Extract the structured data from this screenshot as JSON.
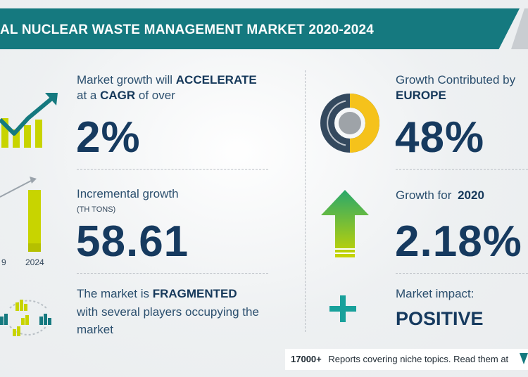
{
  "title": "AL NUCLEAR WASTE MANAGEMENT MARKET 2020-2024",
  "cagr": {
    "line1_prefix": "Market growth will",
    "line1_bold": "ACCELERATE",
    "line2_prefix": "at a",
    "line2_bold": "CAGR",
    "line2_suffix": "of over",
    "value": "2%"
  },
  "incremental": {
    "label": "Incremental growth",
    "unit": "(TH TONS)",
    "value": "58.61",
    "bar_labels": [
      "9",
      "2024"
    ]
  },
  "fragmented": {
    "line1_prefix": "The market is",
    "line1_bold": "FRAGMENTED",
    "line2": "with several players occupying the",
    "line3": "market"
  },
  "region": {
    "label": "Growth Contributed by",
    "name": "EUROPE",
    "value": "48%"
  },
  "yoy": {
    "label": "Growth for",
    "year": "2020",
    "value": "2.18%"
  },
  "impact": {
    "label": "Market impact:",
    "value": "POSITIVE"
  },
  "footer": {
    "count": "17000+",
    "text": "Reports covering niche topics. Read them at"
  },
  "colors": {
    "teal": "#15797f",
    "navy": "#163a5f",
    "yellow_green": "#c8d400",
    "green": "#29a86b",
    "donut_dark": "#34495e",
    "donut_yellow": "#f5c21b"
  }
}
